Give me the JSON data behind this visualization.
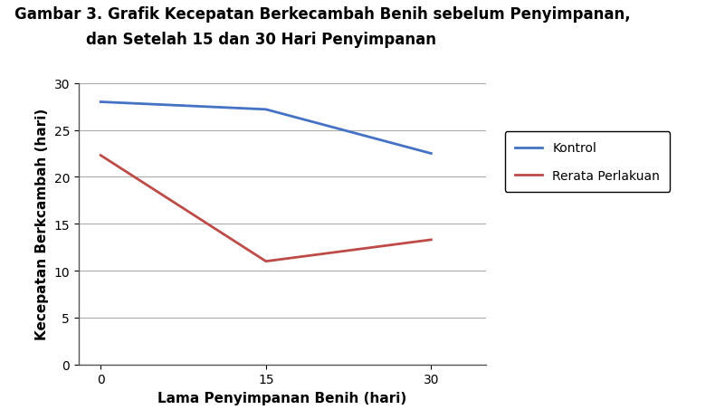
{
  "title_line1": "Gambar 3. Grafik Kecepatan Berkecambah Benih sebelum Penyimpanan,",
  "title_line2": "dan Setelah 15 dan 30 Hari Penyimpanan",
  "xlabel": "Lama Penyimpanan Benih (hari)",
  "ylabel": "Kecepatan Berkcambah (hari)",
  "x_values": [
    0,
    15,
    30
  ],
  "kontrol_values": [
    28.0,
    27.2,
    22.5
  ],
  "rerata_values": [
    22.3,
    11.0,
    13.3
  ],
  "kontrol_color": "#4472C4",
  "rerata_color": "#BE4B48",
  "ylim": [
    0,
    30
  ],
  "yticks": [
    0,
    5,
    10,
    15,
    20,
    25,
    30
  ],
  "xticks": [
    0,
    15,
    30
  ],
  "legend_kontrol": "Kontrol",
  "legend_rerata": "Rerata Perlakuan",
  "title_fontsize": 12,
  "axis_label_fontsize": 11,
  "tick_fontsize": 10,
  "legend_fontsize": 10,
  "line_width": 2.0,
  "background_color": "#ffffff",
  "grid_color": "#aaaaaa",
  "spine_color": "#555555"
}
